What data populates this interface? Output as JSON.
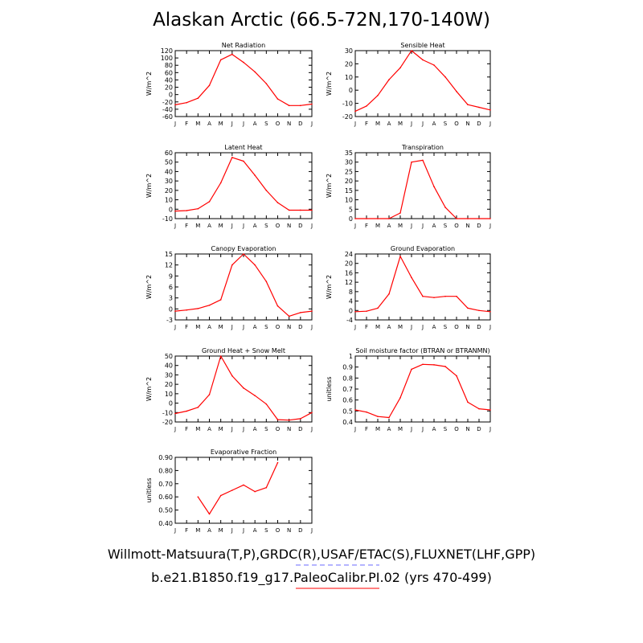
{
  "title": "Alaskan Arctic (66.5-72N,170-140W)",
  "credits": {
    "observations": "Willmott-Matsuura(T,P),GRDC(R),USAF/ETAC(S),FLUXNET(LHF,GPP)",
    "model": "b.e21.B1850.f19_g17.PaleoCalibr.PI.02 (yrs 470-499)"
  },
  "colors": {
    "model_line": "#ff0000",
    "obs_line": "#6a6aff",
    "axes": "#000000"
  },
  "chart_data": [
    {
      "type": "line",
      "title": "Net Radiation",
      "ylabel": "W/m^2",
      "categories": [
        "J",
        "F",
        "M",
        "A",
        "M",
        "J",
        "J",
        "A",
        "S",
        "O",
        "N",
        "D",
        "J"
      ],
      "ylim": [
        -60,
        120
      ],
      "yticks": [
        -60,
        -40,
        -20,
        0,
        20,
        40,
        60,
        80,
        100,
        120
      ],
      "series": [
        {
          "values": [
            -28,
            -22,
            -10,
            25,
            95,
            110,
            88,
            62,
            30,
            -12,
            -30,
            -30,
            -26
          ]
        }
      ]
    },
    {
      "type": "line",
      "title": "Sensible Heat",
      "ylabel": "W/m^2",
      "categories": [
        "J",
        "F",
        "M",
        "A",
        "M",
        "J",
        "J",
        "A",
        "S",
        "O",
        "N",
        "D",
        "J"
      ],
      "ylim": [
        -20,
        30
      ],
      "yticks": [
        -20,
        -10,
        0,
        10,
        20,
        30
      ],
      "series": [
        {
          "values": [
            -16,
            -12,
            -4,
            8,
            17,
            30,
            23,
            19,
            10,
            -1,
            -11,
            -13,
            -15
          ]
        }
      ]
    },
    {
      "type": "line",
      "title": "Latent Heat",
      "ylabel": "W/m^2",
      "categories": [
        "J",
        "F",
        "M",
        "A",
        "M",
        "J",
        "J",
        "A",
        "S",
        "O",
        "N",
        "D",
        "J"
      ],
      "ylim": [
        -10,
        60
      ],
      "yticks": [
        -10,
        0,
        10,
        20,
        30,
        40,
        50,
        60
      ],
      "series": [
        {
          "values": [
            -2,
            -1.5,
            0.5,
            8,
            28,
            55,
            51,
            36,
            20,
            7,
            -1,
            -1,
            -1
          ]
        }
      ]
    },
    {
      "type": "line",
      "title": "Transpiration",
      "ylabel": "W/m^2",
      "categories": [
        "J",
        "F",
        "M",
        "A",
        "M",
        "J",
        "J",
        "A",
        "S",
        "O",
        "N",
        "D",
        "J"
      ],
      "ylim": [
        0,
        35
      ],
      "yticks": [
        0,
        5,
        10,
        15,
        20,
        25,
        30,
        35
      ],
      "series": [
        {
          "values": [
            0,
            0,
            0,
            0,
            3,
            30,
            31,
            17,
            6,
            0,
            0,
            0,
            0
          ]
        }
      ]
    },
    {
      "type": "line",
      "title": "Canopy Evaporation",
      "ylabel": "W/m^2",
      "categories": [
        "J",
        "F",
        "M",
        "A",
        "M",
        "J",
        "J",
        "A",
        "S",
        "O",
        "N",
        "D",
        "J"
      ],
      "ylim": [
        -3,
        15
      ],
      "yticks": [
        -3,
        0,
        3,
        6,
        9,
        12,
        15
      ],
      "series": [
        {
          "values": [
            -0.6,
            -0.3,
            0.1,
            1,
            2.5,
            12,
            15,
            12,
            7.5,
            0.8,
            -2,
            -1,
            -0.6
          ]
        }
      ]
    },
    {
      "type": "line",
      "title": "Ground Evaporation",
      "ylabel": "W/m^2",
      "categories": [
        "J",
        "F",
        "M",
        "A",
        "M",
        "J",
        "J",
        "A",
        "S",
        "O",
        "N",
        "D",
        "J"
      ],
      "ylim": [
        -4,
        24
      ],
      "yticks": [
        -4,
        0,
        4,
        8,
        12,
        16,
        20,
        24
      ],
      "series": [
        {
          "values": [
            -0.5,
            -0.3,
            1,
            7,
            23,
            14,
            6,
            5.5,
            6,
            6,
            1,
            0,
            -0.5
          ]
        }
      ]
    },
    {
      "type": "line",
      "title": "Ground Heat + Snow Melt",
      "ylabel": "W/m^2",
      "categories": [
        "J",
        "F",
        "M",
        "A",
        "M",
        "J",
        "J",
        "A",
        "S",
        "O",
        "N",
        "D",
        "J"
      ],
      "ylim": [
        -20,
        50
      ],
      "yticks": [
        -20,
        -10,
        0,
        10,
        20,
        30,
        40,
        50
      ],
      "series": [
        {
          "values": [
            -11,
            -8.5,
            -4.5,
            9,
            50,
            29,
            16,
            8,
            -1,
            -17.5,
            -18,
            -16.5,
            -10
          ]
        }
      ]
    },
    {
      "type": "line",
      "title": "Soil moisture factor (BTRAN or BTRANMN)",
      "ylabel": "unitless",
      "categories": [
        "J",
        "F",
        "M",
        "A",
        "M",
        "J",
        "J",
        "A",
        "S",
        "O",
        "N",
        "D",
        "J"
      ],
      "ylim": [
        0.4,
        1.0
      ],
      "yticks": [
        0.4,
        0.5,
        0.6,
        0.7,
        0.8,
        0.9,
        1.0
      ],
      "series": [
        {
          "values": [
            0.51,
            0.49,
            0.45,
            0.44,
            0.62,
            0.88,
            0.925,
            0.92,
            0.905,
            0.82,
            0.58,
            0.52,
            0.51
          ]
        }
      ]
    },
    {
      "type": "line",
      "title": "Evaporative Fraction",
      "ylabel": "unitless",
      "categories": [
        "J",
        "F",
        "M",
        "A",
        "M",
        "J",
        "J",
        "A",
        "S",
        "O",
        "N",
        "D",
        "J"
      ],
      "ylim": [
        0.4,
        0.9
      ],
      "yticks": [
        "0.40",
        "0.50",
        "0.60",
        "0.70",
        "0.80",
        "0.90"
      ],
      "series": [
        {
          "values": [
            null,
            null,
            0.6,
            0.47,
            0.61,
            0.65,
            0.69,
            0.64,
            0.67,
            0.86,
            null,
            null,
            null
          ]
        }
      ]
    }
  ]
}
